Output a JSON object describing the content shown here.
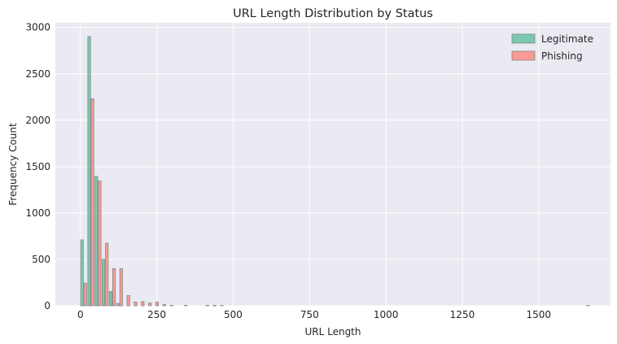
{
  "chart_data": {
    "type": "bar",
    "title": "URL Length Distribution by Status",
    "xlabel": "URL Length",
    "ylabel": "Frequency Count",
    "xlim": [
      -82,
      1735
    ],
    "ylim": [
      0,
      3050
    ],
    "xticks": [
      0,
      250,
      500,
      750,
      1000,
      1250,
      1500
    ],
    "yticks": [
      0,
      500,
      1000,
      1500,
      2000,
      2500,
      3000
    ],
    "grid": true,
    "legend_position": "top-right",
    "bin_width": 23.5,
    "series": [
      {
        "name": "Legitimate",
        "color": "#66c2a5",
        "bins": [
          0,
          23.5,
          47,
          70.5,
          94,
          117.5
        ],
        "values": [
          710,
          2900,
          1395,
          500,
          155,
          25
        ]
      },
      {
        "name": "Phishing",
        "color": "#fc8d82",
        "bins": [
          0,
          23.5,
          47,
          70.5,
          94,
          117.5,
          141,
          164.5,
          188,
          211.5,
          235,
          258.5,
          282,
          329,
          399.5,
          423,
          446.5,
          1645
        ],
        "values": [
          245,
          2230,
          1345,
          675,
          400,
          400,
          110,
          40,
          45,
          30,
          40,
          15,
          5,
          5,
          5,
          5,
          3,
          3
        ]
      }
    ]
  }
}
